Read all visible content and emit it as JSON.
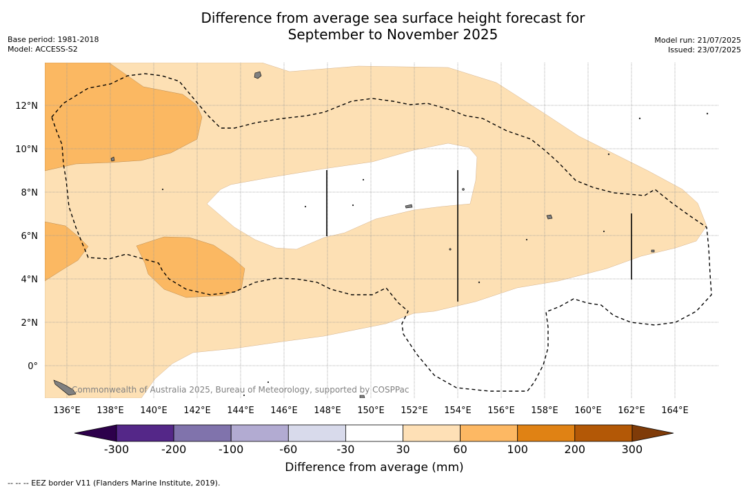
{
  "header": {
    "title_line1": "Difference from average sea surface height forecast for",
    "title_line2": "September to November 2025",
    "base_period": "Base period: 1981-2018",
    "model": "Model: ACCESS-S2",
    "model_run": "Model run: 21/07/2025",
    "issued": "Issued: 23/07/2025"
  },
  "map": {
    "lat_labels": [
      "12°N",
      "10°N",
      "8°N",
      "6°N",
      "4°N",
      "2°N",
      "0°"
    ],
    "lon_labels": [
      "136°E",
      "138°E",
      "140°E",
      "142°E",
      "144°E",
      "146°E",
      "148°E",
      "150°E",
      "152°E",
      "154°E",
      "156°E",
      "158°E",
      "160°E",
      "162°E",
      "164°E"
    ],
    "credit": "Commonwealth of Australia 2025, Bureau of Meteorology, supported by COSPPac",
    "colors": {
      "band_30_60": "#fde0b4",
      "band_60_100": "#fbb862",
      "land": "#808080",
      "eez_border": "#000000"
    }
  },
  "colorbar": {
    "tick_labels": [
      "-300",
      "-200",
      "-100",
      "-60",
      "-30",
      "30",
      "60",
      "100",
      "200",
      "300"
    ],
    "colors": [
      "#542788",
      "#8073ac",
      "#b2abd2",
      "#d8daeb",
      "#ffffff",
      "#fee0b6",
      "#fdb863",
      "#e08214",
      "#b35806"
    ],
    "extend_low": "#2d004b",
    "extend_high": "#7f3b08",
    "label": "Difference from average (mm)"
  },
  "footnote": "--  --  -- EEZ border V11 (Flanders Marine Institute, 2019)."
}
